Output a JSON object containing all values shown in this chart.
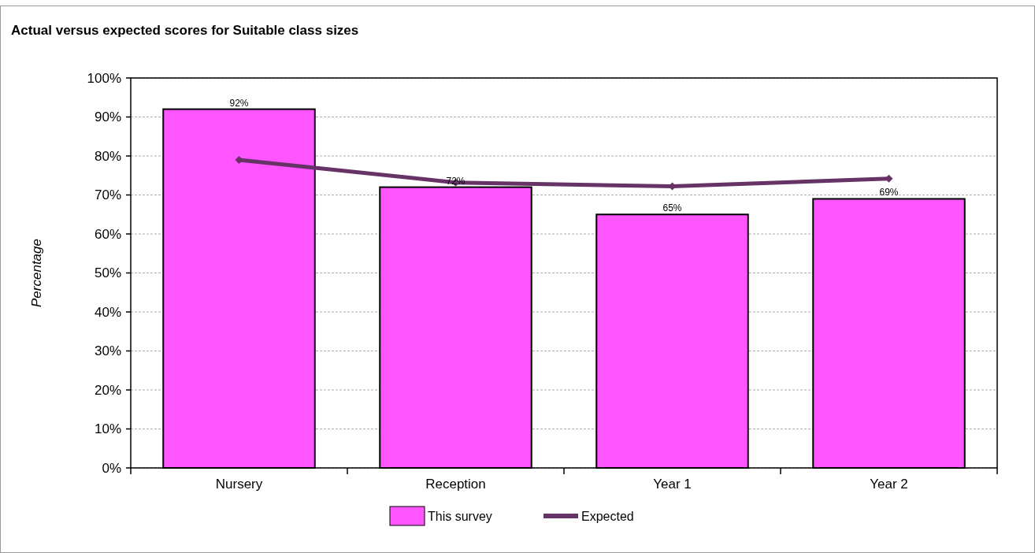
{
  "chart_data": {
    "type": "bar",
    "title": "Actual versus expected scores for Suitable class sizes",
    "ylabel": "Percentage",
    "categories": [
      "Nursery",
      "Reception",
      "Year 1",
      "Year 2"
    ],
    "series": [
      {
        "name": "This survey",
        "color": "#ff55ff",
        "values": [
          92,
          72,
          65,
          69
        ],
        "value_labels": [
          "92%",
          "72%",
          "65%",
          "69%"
        ]
      },
      {
        "name": "Expected",
        "type": "line",
        "color": "#663366",
        "values": [
          79,
          73.2,
          72.2,
          74.2
        ],
        "marker": "diamond"
      }
    ],
    "ylim": [
      0,
      100
    ],
    "yticks": [
      {
        "value": 0,
        "label": "0%"
      },
      {
        "value": 10,
        "label": "10%"
      },
      {
        "value": 20,
        "label": "20%"
      },
      {
        "value": 30,
        "label": "30%"
      },
      {
        "value": 40,
        "label": "40%"
      },
      {
        "value": 50,
        "label": "50%"
      },
      {
        "value": 60,
        "label": "60%"
      },
      {
        "value": 70,
        "label": "70%"
      },
      {
        "value": 80,
        "label": "80%"
      },
      {
        "value": 90,
        "label": "90%"
      },
      {
        "value": 100,
        "label": "100%"
      }
    ],
    "grid": "y",
    "legend": "bottom"
  }
}
